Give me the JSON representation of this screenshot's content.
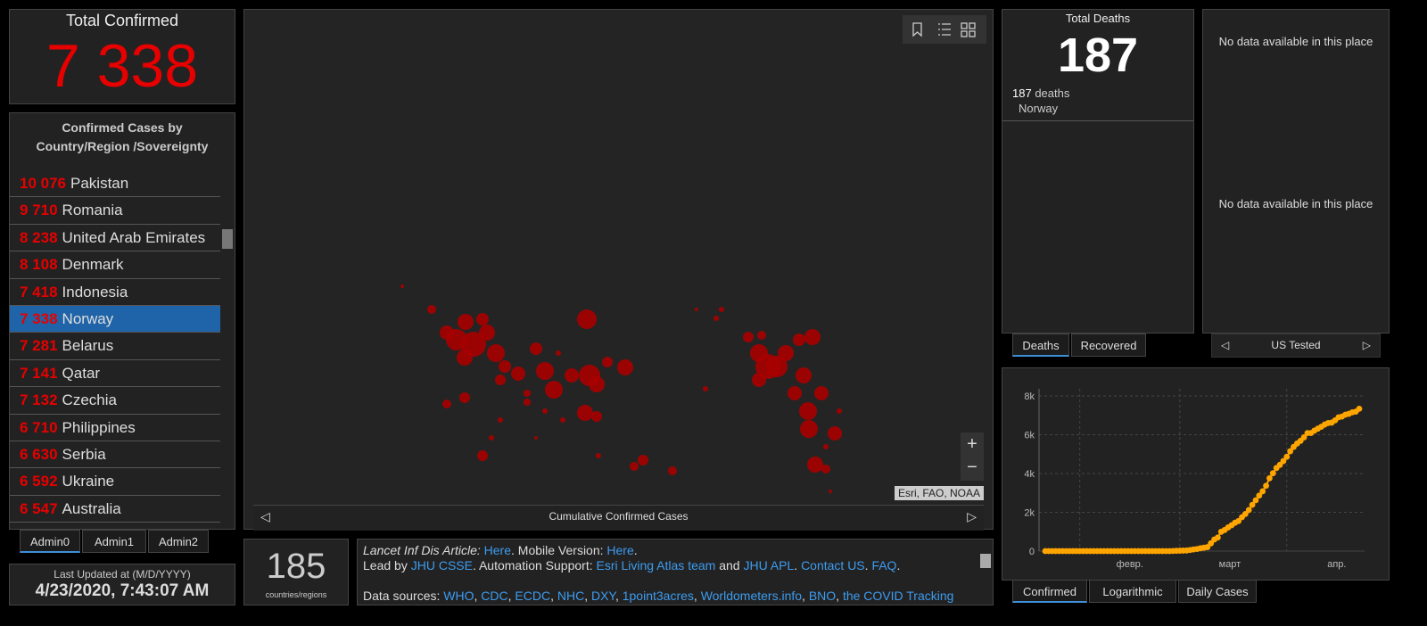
{
  "confirmed": {
    "title": "Total Confirmed",
    "value": "7 338"
  },
  "list": {
    "title": "Confirmed Cases by Country/Region /Sovereignty",
    "selected": 5,
    "rows": [
      {
        "count": "10 076",
        "name": "Pakistan"
      },
      {
        "count": "9 710",
        "name": "Romania"
      },
      {
        "count": "8 238",
        "name": "United Arab Emirates"
      },
      {
        "count": "8 108",
        "name": "Denmark"
      },
      {
        "count": "7 418",
        "name": "Indonesia"
      },
      {
        "count": "7 338",
        "name": "Norway"
      },
      {
        "count": "7 281",
        "name": "Belarus"
      },
      {
        "count": "7 141",
        "name": "Qatar"
      },
      {
        "count": "7 132",
        "name": "Czechia"
      },
      {
        "count": "6 710",
        "name": "Philippines"
      },
      {
        "count": "6 630",
        "name": "Serbia"
      },
      {
        "count": "6 592",
        "name": "Ukraine"
      },
      {
        "count": "6 547",
        "name": "Australia"
      }
    ]
  },
  "list_tabs": [
    "Admin0",
    "Admin1",
    "Admin2"
  ],
  "updated": {
    "label": "Last Updated at (M/D/YYYY)",
    "value": "4/23/2020, 7:43:07 AM"
  },
  "map": {
    "attribution": "Esri, FAO, NOAA",
    "caption": "Cumulative Confirmed Cases"
  },
  "countries": {
    "value": "185",
    "label": "countries/regions"
  },
  "info": {
    "lines": [
      [
        {
          "text": "Lancet Inf Dis",
          "style": "italic"
        },
        {
          "text": " Article: ",
          "style": "italic"
        },
        {
          "text": "Here",
          "style": "link"
        },
        {
          "text": ". Mobile Version: ",
          "style": "plain"
        },
        {
          "text": "Here",
          "style": "link"
        },
        {
          "text": ".",
          "style": "plain"
        }
      ],
      [
        {
          "text": "Lead by ",
          "style": "plain"
        },
        {
          "text": "JHU CSSE",
          "style": "link"
        },
        {
          "text": ". Automation Support: ",
          "style": "plain"
        },
        {
          "text": "Esri Living Atlas team",
          "style": "link"
        },
        {
          "text": " and ",
          "style": "plain"
        },
        {
          "text": "JHU APL",
          "style": "link"
        },
        {
          "text": ". ",
          "style": "plain"
        },
        {
          "text": "Contact US",
          "style": "link"
        },
        {
          "text": ". ",
          "style": "plain"
        },
        {
          "text": "FAQ",
          "style": "link"
        },
        {
          "text": ".",
          "style": "plain"
        }
      ],
      [
        {
          "text": "Data sources: ",
          "style": "plain"
        },
        {
          "text": "WHO",
          "style": "link"
        },
        {
          "text": ", ",
          "style": "plain"
        },
        {
          "text": "CDC",
          "style": "link"
        },
        {
          "text": ", ",
          "style": "plain"
        },
        {
          "text": "ECDC",
          "style": "link"
        },
        {
          "text": ", ",
          "style": "plain"
        },
        {
          "text": "NHC",
          "style": "link"
        },
        {
          "text": ", ",
          "style": "plain"
        },
        {
          "text": "DXY",
          "style": "link"
        },
        {
          "text": ", ",
          "style": "plain"
        },
        {
          "text": "1point3acres",
          "style": "link"
        },
        {
          "text": ", ",
          "style": "plain"
        },
        {
          "text": "Worldometers.info",
          "style": "link"
        },
        {
          "text": ", ",
          "style": "plain"
        },
        {
          "text": "BNO",
          "style": "link"
        },
        {
          "text": ", ",
          "style": "plain"
        },
        {
          "text": "the COVID Tracking",
          "style": "link"
        }
      ]
    ]
  },
  "deaths": {
    "title": "Total Deaths",
    "value": "187",
    "detail_value": "187",
    "detail_unit": "deaths",
    "detail_place": "Norway"
  },
  "deaths_tabs": [
    "Deaths",
    "Recovered"
  ],
  "tested": {
    "messages": [
      "No data available in this place",
      "No data available in this place"
    ],
    "nav": "US Tested"
  },
  "chart_data": {
    "type": "line",
    "color": "#ffa500",
    "grid": true,
    "xlim": [
      0,
      91
    ],
    "xticks": [
      {
        "value": 10,
        "label": "февр."
      },
      {
        "value": 39,
        "label": "март"
      },
      {
        "value": 70,
        "label": "апр."
      }
    ],
    "ylim": [
      0,
      8000
    ],
    "yticks": [
      0,
      {
        "value": 2000,
        "label": "2k"
      },
      {
        "value": 4000,
        "label": "4k"
      },
      {
        "value": 6000,
        "label": "6k"
      },
      {
        "value": 8000,
        "label": "8k"
      }
    ],
    "values": [
      0,
      0,
      0,
      0,
      0,
      0,
      0,
      0,
      0,
      0,
      0,
      0,
      0,
      0,
      0,
      0,
      0,
      0,
      0,
      0,
      0,
      0,
      0,
      0,
      0,
      0,
      0,
      0,
      0,
      0,
      0,
      0,
      0,
      0,
      0,
      1,
      1,
      6,
      15,
      19,
      25,
      32,
      56,
      87,
      108,
      147,
      176,
      205,
      400,
      598,
      702,
      996,
      1090,
      1221,
      1333,
      1463,
      1550,
      1746,
      1914,
      2118,
      2385,
      2621,
      2863,
      3084,
      3369,
      3755,
      4015,
      4284,
      4445,
      4641,
      4863,
      5147,
      5370,
      5550,
      5687,
      5865,
      6086,
      6086,
      6211,
      6314,
      6409,
      6525,
      6603,
      6623,
      6740,
      6896,
      6937,
      7036,
      7078,
      7156,
      7191,
      7338
    ]
  },
  "chart_tabs": [
    "Confirmed",
    "Logarithmic",
    "Daily Cases"
  ]
}
